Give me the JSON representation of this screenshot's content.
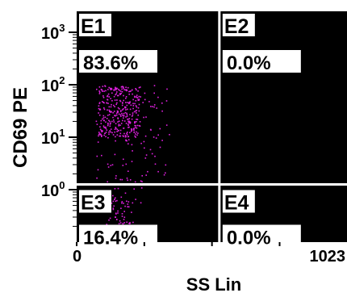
{
  "chart_data": {
    "type": "scatter",
    "title": "",
    "xlabel": "SS Lin",
    "ylabel": "CD69 PE",
    "xlim": [
      0,
      1023
    ],
    "ylim_log10": [
      -1,
      3.4
    ],
    "y_scale": "log",
    "x_ticks": [
      {
        "value": 0,
        "label": "0"
      },
      {
        "value": 1023,
        "label": "1023"
      }
    ],
    "y_ticks": [
      {
        "value": 0,
        "base": "10",
        "exp": "0"
      },
      {
        "value": 1,
        "base": "10",
        "exp": "1"
      },
      {
        "value": 2,
        "base": "10",
        "exp": "2"
      },
      {
        "value": 3,
        "base": "10",
        "exp": "3"
      }
    ],
    "gate_x": 540,
    "gate_y_log10": 0.1,
    "quadrants": [
      {
        "id": "E1",
        "percent": "83.6%"
      },
      {
        "id": "E2",
        "percent": "0.0%"
      },
      {
        "id": "E3",
        "percent": "16.4%"
      },
      {
        "id": "E4",
        "percent": "0.0%"
      }
    ],
    "background_color": "#000000",
    "point_color": "#e020e0",
    "gate_color": "#ffffff",
    "clusters": [
      {
        "quadrant": "E1",
        "x_range": [
          70,
          350
        ],
        "y_log10_range": [
          0.15,
          2.0
        ],
        "core_x": [
          80,
          240
        ],
        "core_y_log10": [
          1.0,
          2.0
        ],
        "count": 420
      },
      {
        "quadrant": "E3",
        "x_range": [
          90,
          260
        ],
        "y_log10_range": [
          -0.95,
          0.05
        ],
        "core_x": [
          110,
          200
        ],
        "core_y_log10": [
          -0.9,
          -0.1
        ],
        "count": 95
      }
    ]
  }
}
